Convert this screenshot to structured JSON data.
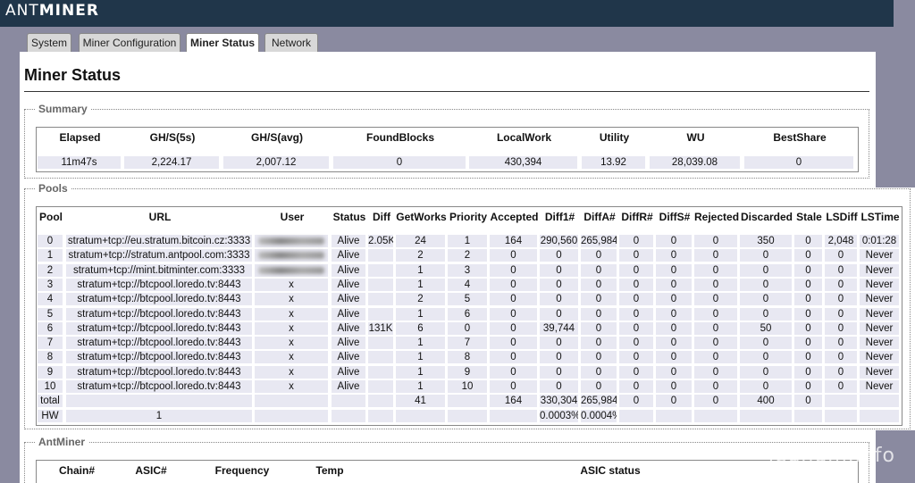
{
  "brand": {
    "prefix": "ANT",
    "name": "MINER"
  },
  "tabs": [
    {
      "label": "System"
    },
    {
      "label": "Miner Configuration"
    },
    {
      "label": "Miner Status"
    },
    {
      "label": "Network"
    }
  ],
  "page_title": "Miner Status",
  "summary": {
    "legend": "Summary",
    "headers": [
      "Elapsed",
      "GH/S(5s)",
      "GH/S(avg)",
      "FoundBlocks",
      "LocalWork",
      "Utility",
      "WU",
      "BestShare"
    ],
    "values": [
      "11m47s",
      "2,224.17",
      "2,007.12",
      "0",
      "430,394",
      "13.92",
      "28,039.08",
      "0"
    ]
  },
  "pools": {
    "legend": "Pools",
    "headers": [
      "Pool",
      "URL",
      "User",
      "Status",
      "Diff",
      "GetWorks",
      "Priority",
      "Accepted",
      "Diff1#",
      "DiffA#",
      "DiffR#",
      "DiffS#",
      "Rejected",
      "Discarded",
      "Stale",
      "LSDiff",
      "LSTime"
    ],
    "rows": [
      [
        "0",
        "stratum+tcp://eu.stratum.bitcoin.cz:3333",
        "",
        "Alive",
        "2.05K",
        "24",
        "1",
        "164",
        "290,560",
        "265,984",
        "0",
        "0",
        "0",
        "350",
        "0",
        "2,048",
        "0:01:28"
      ],
      [
        "1",
        "stratum+tcp://stratum.antpool.com:3333",
        "",
        "Alive",
        "",
        "2",
        "2",
        "0",
        "0",
        "0",
        "0",
        "0",
        "0",
        "0",
        "0",
        "0",
        "Never"
      ],
      [
        "2",
        "stratum+tcp://mint.bitminter.com:3333",
        "",
        "Alive",
        "",
        "1",
        "3",
        "0",
        "0",
        "0",
        "0",
        "0",
        "0",
        "0",
        "0",
        "0",
        "Never"
      ],
      [
        "3",
        "stratum+tcp://btcpool.loredo.tv:8443",
        "x",
        "Alive",
        "",
        "1",
        "4",
        "0",
        "0",
        "0",
        "0",
        "0",
        "0",
        "0",
        "0",
        "0",
        "Never"
      ],
      [
        "4",
        "stratum+tcp://btcpool.loredo.tv:8443",
        "x",
        "Alive",
        "",
        "2",
        "5",
        "0",
        "0",
        "0",
        "0",
        "0",
        "0",
        "0",
        "0",
        "0",
        "Never"
      ],
      [
        "5",
        "stratum+tcp://btcpool.loredo.tv:8443",
        "x",
        "Alive",
        "",
        "1",
        "6",
        "0",
        "0",
        "0",
        "0",
        "0",
        "0",
        "0",
        "0",
        "0",
        "Never"
      ],
      [
        "6",
        "stratum+tcp://btcpool.loredo.tv:8443",
        "x",
        "Alive",
        "131K",
        "6",
        "0",
        "0",
        "39,744",
        "0",
        "0",
        "0",
        "0",
        "50",
        "0",
        "0",
        "Never"
      ],
      [
        "7",
        "stratum+tcp://btcpool.loredo.tv:8443",
        "x",
        "Alive",
        "",
        "1",
        "7",
        "0",
        "0",
        "0",
        "0",
        "0",
        "0",
        "0",
        "0",
        "0",
        "Never"
      ],
      [
        "8",
        "stratum+tcp://btcpool.loredo.tv:8443",
        "x",
        "Alive",
        "",
        "1",
        "8",
        "0",
        "0",
        "0",
        "0",
        "0",
        "0",
        "0",
        "0",
        "0",
        "Never"
      ],
      [
        "9",
        "stratum+tcp://btcpool.loredo.tv:8443",
        "x",
        "Alive",
        "",
        "1",
        "9",
        "0",
        "0",
        "0",
        "0",
        "0",
        "0",
        "0",
        "0",
        "0",
        "Never"
      ],
      [
        "10",
        "stratum+tcp://btcpool.loredo.tv:8443",
        "x",
        "Alive",
        "",
        "1",
        "10",
        "0",
        "0",
        "0",
        "0",
        "0",
        "0",
        "0",
        "0",
        "0",
        "Never"
      ],
      [
        "total",
        "",
        "",
        "",
        "",
        "41",
        "",
        "164",
        "330,304",
        "265,984",
        "0",
        "0",
        "0",
        "400",
        "0",
        "",
        ""
      ],
      [
        "HW",
        "1",
        "",
        "",
        "",
        "",
        "",
        "",
        "0.0003%",
        "0.0004%",
        "",
        "",
        "",
        "",
        "",
        "",
        ""
      ]
    ]
  },
  "antminer": {
    "legend": "AntMiner",
    "headers": [
      "Chain#",
      "ASIC#",
      "Frequency",
      "Temp",
      "ASIC status"
    ]
  },
  "watermark": "legnum.info"
}
